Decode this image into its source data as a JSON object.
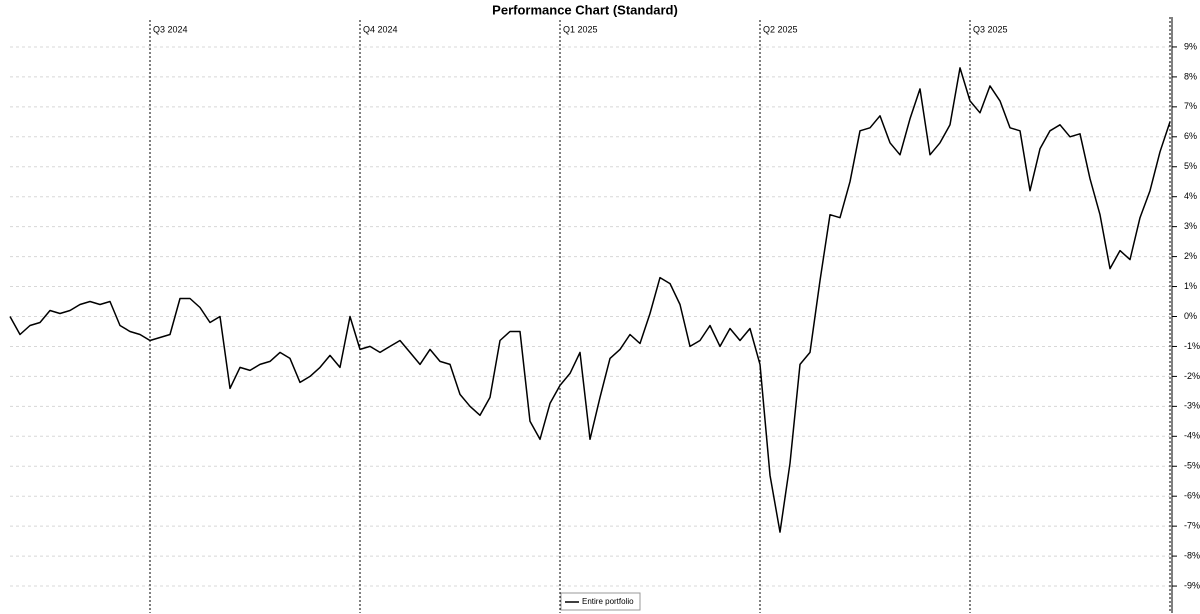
{
  "chart_data": {
    "type": "line",
    "title": "Performance Chart (Standard)",
    "categories": [
      null,
      null,
      null,
      null,
      null,
      null,
      null,
      null,
      null,
      null,
      null,
      null,
      null,
      null,
      "Q3 2024",
      null,
      null,
      null,
      null,
      null,
      null,
      null,
      null,
      null,
      null,
      null,
      null,
      null,
      null,
      null,
      null,
      null,
      null,
      null,
      null,
      "Q4 2024",
      null,
      null,
      null,
      null,
      null,
      null,
      null,
      null,
      null,
      null,
      null,
      null,
      null,
      null,
      null,
      null,
      null,
      null,
      null,
      "Q1 2025",
      null,
      null,
      null,
      null,
      null,
      null,
      null,
      null,
      null,
      null,
      null,
      null,
      null,
      null,
      null,
      null,
      null,
      null,
      null,
      "Q2 2025",
      null,
      null,
      null,
      null,
      null,
      null,
      null,
      null,
      null,
      null,
      null,
      null,
      null,
      null,
      null,
      null,
      null,
      null,
      null,
      null,
      "Q3 2025",
      null,
      null,
      null,
      null,
      null,
      null,
      null,
      null,
      null,
      null,
      null,
      null,
      null,
      null,
      null,
      null,
      null,
      null,
      null,
      null
    ],
    "series": [
      {
        "name": "Entire portfolio",
        "color": "#000000",
        "values": [
          0,
          -0.6,
          -0.3,
          -0.2,
          0.2,
          0.1,
          0.2,
          0.4,
          0.5,
          0.4,
          0.5,
          -0.3,
          -0.5,
          -0.6,
          -0.8,
          -0.7,
          -0.6,
          0.6,
          0.6,
          0.3,
          -0.2,
          0,
          -2.4,
          -1.7,
          -1.8,
          -1.6,
          -1.5,
          -1.2,
          -1.4,
          -2.2,
          -2,
          -1.7,
          -1.3,
          -1.7,
          0,
          -1.1,
          -1,
          -1.2,
          -1,
          -0.8,
          -1.2,
          -1.6,
          -1.1,
          -1.5,
          -1.6,
          -2.6,
          -3,
          -3.3,
          -2.7,
          -0.8,
          -0.5,
          -0.5,
          -3.5,
          -4.1,
          -2.9,
          -2.3,
          -1.9,
          -1.2,
          -4.1,
          -2.7,
          -1.4,
          -1.1,
          -0.6,
          -0.9,
          0.1,
          1.3,
          1.1,
          0.4,
          -1,
          -0.8,
          -0.3,
          -1,
          -0.4,
          -0.8,
          -0.4,
          -1.6,
          -5.3,
          -7.2,
          -4.9,
          -1.6,
          -1.2,
          1.2,
          3.4,
          3.3,
          4.5,
          6.2,
          6.3,
          6.7,
          5.8,
          5.4,
          6.6,
          7.6,
          5.4,
          5.8,
          6.4,
          8.3,
          7.2,
          6.8,
          7.7,
          7.2,
          6.3,
          6.2,
          4.2,
          5.6,
          6.2,
          6.4,
          6,
          6.1,
          4.6,
          3.4,
          1.6,
          2.2,
          1.9,
          3.3,
          4.2,
          5.5,
          6.5
        ]
      }
    ],
    "ylim": [
      -9.9,
      10
    ],
    "yticks": [
      {
        "value": 9,
        "label": "9%"
      },
      {
        "value": 8,
        "label": "8%"
      },
      {
        "value": 7,
        "label": "7%"
      },
      {
        "value": 6,
        "label": "6%"
      },
      {
        "value": 5,
        "label": "5%"
      },
      {
        "value": 4,
        "label": "4%"
      },
      {
        "value": 3,
        "label": "3%"
      },
      {
        "value": 2,
        "label": "2%"
      },
      {
        "value": 1,
        "label": "1%"
      },
      {
        "value": 0,
        "label": "0%"
      },
      {
        "value": -1,
        "label": "-1%"
      },
      {
        "value": -2,
        "label": "-2%"
      },
      {
        "value": -3,
        "label": "-3%"
      },
      {
        "value": -4,
        "label": "-4%"
      },
      {
        "value": -5,
        "label": "-5%"
      },
      {
        "value": -6,
        "label": "-6%"
      },
      {
        "value": -7,
        "label": "-7%"
      },
      {
        "value": -8,
        "label": "-8%"
      },
      {
        "value": -9,
        "label": "-9%"
      }
    ],
    "grid": true,
    "legend": "bottom"
  }
}
